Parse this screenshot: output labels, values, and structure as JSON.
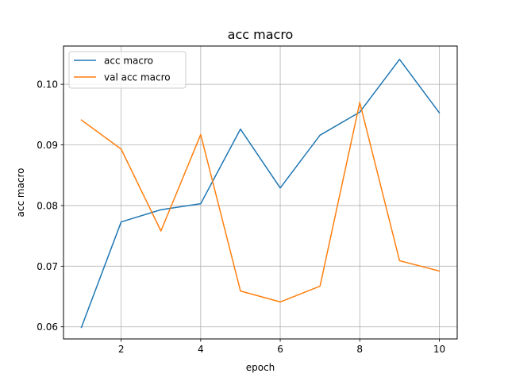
{
  "chart_data": {
    "type": "line",
    "title": "acc macro",
    "xlabel": "epoch",
    "ylabel": "acc macro",
    "xlim": [
      0.55,
      10.45
    ],
    "ylim": [
      0.058,
      0.1063
    ],
    "xticks": [
      2,
      4,
      6,
      8,
      10
    ],
    "xtick_labels": [
      "2",
      "4",
      "6",
      "8",
      "10"
    ],
    "yticks": [
      0.06,
      0.07,
      0.08,
      0.09,
      0.1
    ],
    "ytick_labels": [
      "0.06",
      "0.07",
      "0.08",
      "0.09",
      "0.10"
    ],
    "grid": true,
    "legend_position": "top-left",
    "x": [
      1,
      2,
      3,
      4,
      5,
      6,
      7,
      8,
      9,
      10
    ],
    "series": [
      {
        "name": "acc macro",
        "color": "#1f77b4",
        "values": [
          0.0599,
          0.0773,
          0.0793,
          0.0803,
          0.0926,
          0.0829,
          0.0916,
          0.0954,
          0.1041,
          0.0953
        ]
      },
      {
        "name": "val acc macro",
        "color": "#ff7f0e",
        "values": [
          0.0941,
          0.0893,
          0.0758,
          0.0917,
          0.0659,
          0.0641,
          0.0667,
          0.097,
          0.0709,
          0.0692
        ]
      }
    ]
  }
}
